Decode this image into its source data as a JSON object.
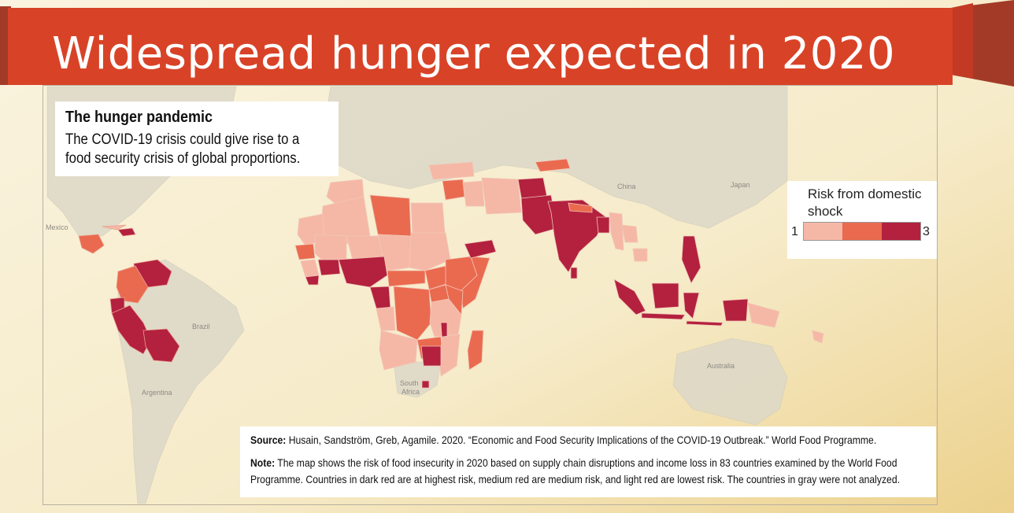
{
  "header": {
    "title": "Widespread hunger expected in 2020"
  },
  "info_box": {
    "title": "The hunger pandemic",
    "description": "The COVID-19 crisis could give rise to a food security crisis of global proportions."
  },
  "legend": {
    "title": "Risk from domestic shock",
    "min_label": "1",
    "max_label": "3",
    "colors": [
      "#f6b8a6",
      "#ea6a4f",
      "#b3213f"
    ]
  },
  "map_labels": {
    "mexico": "Mexico",
    "brazil": "Brazil",
    "argentina": "Argentina",
    "china": "China",
    "japan": "Japan",
    "australia": "Australia",
    "south_africa_line1": "South",
    "south_africa_line2": "Africa"
  },
  "source": {
    "source_label": "Source:",
    "source_text": "Husain, Sandström, Greb, Agamile. 2020. “Economic and Food Security Implications of the COVID-19 Outbreak.” World Food Programme.",
    "note_label": "Note:",
    "note_text": "The map shows the risk of food insecurity in 2020 based on supply chain disruptions and income loss in 83 countries examined by the World Food Programme. Countries in dark red are at highest risk, medium red are medium risk, and light red are lowest risk. The countries in gray were not analyzed."
  },
  "colors": {
    "banner": "#d84327",
    "banner_dark": "#a33a28",
    "low_risk": "#f6b8a6",
    "medium_risk": "#ea6a4f",
    "high_risk": "#b3213f",
    "not_analyzed": "#ddd8c8"
  }
}
